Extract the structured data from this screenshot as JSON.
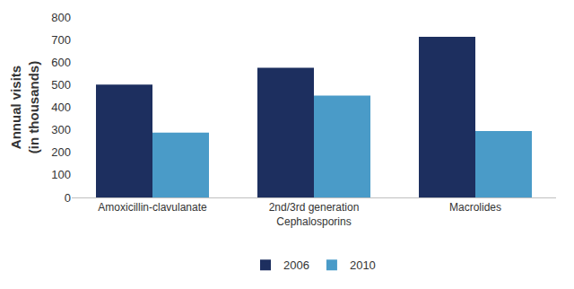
{
  "chart_data": {
    "type": "bar",
    "y_label": "Annual visits\n(in thousands)",
    "categories": [
      "Amoxicillin-clavulanate",
      "2nd/3rd generation\nCephalosporins",
      "Macrolides"
    ],
    "series": [
      {
        "name": "2006",
        "color": "#1d2f5f",
        "values": [
          500,
          575,
          712
        ]
      },
      {
        "name": "2010",
        "color": "#4a9bc8",
        "values": [
          288,
          452,
          295
        ]
      }
    ],
    "ylim": [
      0,
      800
    ],
    "yticks": [
      0,
      100,
      200,
      300,
      400,
      500,
      600,
      700,
      800
    ],
    "grid": false,
    "legend": "bottom"
  }
}
